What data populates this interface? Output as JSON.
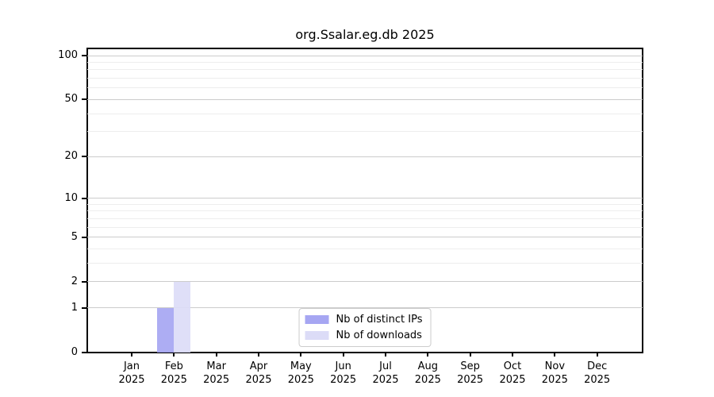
{
  "title": "org.Ssalar.eg.db 2025",
  "chart_data": {
    "type": "bar",
    "title": "org.Ssalar.eg.db 2025",
    "categories": [
      "Jan 2025",
      "Feb 2025",
      "Mar 2025",
      "Apr 2025",
      "May 2025",
      "Jun 2025",
      "Jul 2025",
      "Aug 2025",
      "Sep 2025",
      "Oct 2025",
      "Nov 2025",
      "Dec 2025"
    ],
    "series": [
      {
        "name": "Nb of distinct IPs",
        "color": "#a6a6f2",
        "values": [
          0,
          1,
          0,
          0,
          0,
          0,
          0,
          0,
          0,
          0,
          0,
          0
        ]
      },
      {
        "name": "Nb of downloads",
        "color": "#dcdcf7",
        "values": [
          0,
          2,
          0,
          0,
          0,
          0,
          0,
          0,
          0,
          0,
          0,
          0
        ]
      }
    ],
    "yscale": "log10(value+1)",
    "ylim": [
      0,
      112
    ],
    "ymajor_ticks": [
      0,
      1,
      2,
      5,
      10,
      20,
      50,
      100
    ],
    "yminor_gridlines": [
      3,
      4,
      6,
      7,
      8,
      9,
      30,
      40,
      60,
      70,
      80,
      90
    ],
    "grid": "horizontal",
    "grid_major_color": "#cccccc",
    "grid_minor_color": "#ededed",
    "legend": {
      "position": "lower center",
      "items": [
        "Nb of distinct IPs",
        "Nb of downloads"
      ]
    }
  }
}
